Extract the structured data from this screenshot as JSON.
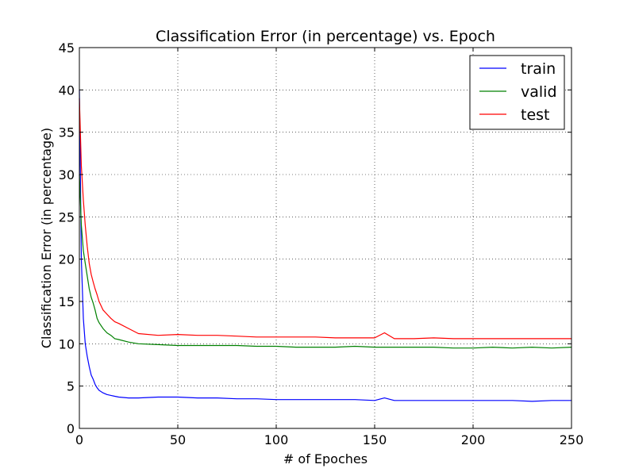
{
  "chart_data": {
    "type": "line",
    "title": "Classification Error (in percentage) vs. Epoch",
    "xlabel": "# of Epoches",
    "ylabel": "Classification Error (in percentage)",
    "xlim": [
      0,
      250
    ],
    "ylim": [
      0,
      45
    ],
    "xticks": [
      0,
      50,
      100,
      150,
      200,
      250
    ],
    "yticks": [
      0,
      5,
      10,
      15,
      20,
      25,
      30,
      35,
      40,
      45
    ],
    "grid": true,
    "legend_position": "top-right",
    "series": [
      {
        "name": "train",
        "color": "#0000ff",
        "x": [
          0,
          1,
          2,
          3,
          4,
          5,
          6,
          7,
          8,
          9,
          10,
          12,
          14,
          16,
          18,
          20,
          25,
          30,
          40,
          50,
          60,
          70,
          80,
          90,
          100,
          110,
          120,
          130,
          140,
          150,
          155,
          160,
          170,
          180,
          190,
          200,
          210,
          220,
          230,
          240,
          250
        ],
        "y": [
          40,
          20,
          13,
          10,
          8.5,
          7.3,
          6.3,
          5.8,
          5.2,
          4.8,
          4.5,
          4.2,
          4.0,
          3.9,
          3.8,
          3.7,
          3.6,
          3.6,
          3.7,
          3.7,
          3.6,
          3.6,
          3.5,
          3.5,
          3.4,
          3.4,
          3.4,
          3.4,
          3.4,
          3.3,
          3.6,
          3.3,
          3.3,
          3.3,
          3.3,
          3.3,
          3.3,
          3.3,
          3.2,
          3.3,
          3.3
        ]
      },
      {
        "name": "valid",
        "color": "#008000",
        "x": [
          0,
          1,
          2,
          3,
          4,
          5,
          6,
          7,
          8,
          9,
          10,
          12,
          14,
          16,
          18,
          20,
          25,
          30,
          40,
          50,
          60,
          70,
          80,
          90,
          100,
          110,
          120,
          130,
          140,
          150,
          160,
          170,
          180,
          190,
          200,
          210,
          220,
          230,
          240,
          250
        ],
        "y": [
          30,
          24,
          21,
          19.5,
          18,
          16.5,
          15.5,
          14.8,
          14,
          13,
          12.5,
          11.8,
          11.3,
          11,
          10.6,
          10.5,
          10.2,
          10.0,
          9.9,
          9.8,
          9.8,
          9.8,
          9.8,
          9.7,
          9.7,
          9.6,
          9.6,
          9.6,
          9.7,
          9.6,
          9.6,
          9.6,
          9.6,
          9.5,
          9.5,
          9.6,
          9.5,
          9.6,
          9.5,
          9.6
        ]
      },
      {
        "name": "test",
        "color": "#ff0000",
        "x": [
          0,
          1,
          2,
          3,
          4,
          5,
          6,
          7,
          8,
          9,
          10,
          12,
          14,
          16,
          18,
          20,
          25,
          30,
          40,
          50,
          60,
          70,
          80,
          90,
          100,
          110,
          120,
          130,
          140,
          150,
          155,
          160,
          170,
          180,
          190,
          200,
          210,
          220,
          230,
          240,
          250
        ],
        "y": [
          39,
          31,
          27,
          24,
          21.5,
          19.5,
          18.2,
          17.3,
          16.5,
          15.8,
          15,
          14,
          13.5,
          13,
          12.6,
          12.4,
          11.8,
          11.2,
          11.0,
          11.1,
          11.0,
          11.0,
          10.9,
          10.8,
          10.8,
          10.8,
          10.8,
          10.7,
          10.7,
          10.7,
          11.3,
          10.6,
          10.6,
          10.7,
          10.6,
          10.6,
          10.6,
          10.6,
          10.6,
          10.6,
          10.6
        ]
      }
    ]
  }
}
